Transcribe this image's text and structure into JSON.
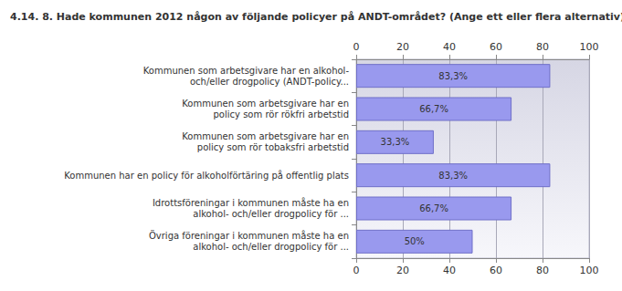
{
  "chart_data": {
    "type": "bar",
    "orientation": "horizontal",
    "title": "4.14. 8. Hade kommunen 2012 någon av följande policyer på ANDT-området? (Ange ett eller flera alternativ)",
    "categories": [
      "Kommunen som arbetsgivare har en alkohol-\noch/eller drogpolicy (ANDT-policy...",
      "Kommunen som arbetsgivare har en\npolicy som rör rökfri arbetstid",
      "Kommunen som arbetsgivare har en\npolicy som rör tobaksfri arbetstid",
      "Kommunen har en policy för alkoholförtäring på offentlig plats",
      "Idrottsföreningar i kommunen måste ha en\nalkohol- och/eller drogpolicy för ...",
      "Övriga föreningar i kommunen måste ha en\nalkohol- och/eller drogpolicy för ..."
    ],
    "values": [
      83.3,
      66.7,
      33.3,
      83.3,
      66.7,
      50
    ],
    "value_labels": [
      "83,3%",
      "66,7%",
      "33,3%",
      "83,3%",
      "66,7%",
      "50%"
    ],
    "color": "#9999ee",
    "xlim": [
      0,
      100
    ],
    "xticks": [
      0,
      20,
      40,
      60,
      80,
      100
    ],
    "grid": true,
    "data_labels": true
  }
}
